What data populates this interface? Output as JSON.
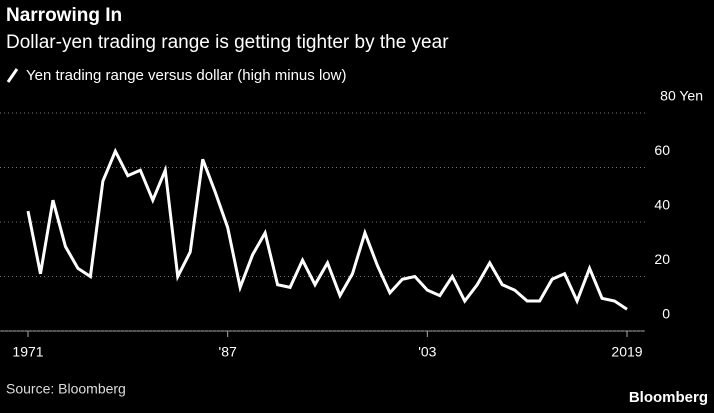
{
  "chart_data": {
    "type": "line",
    "title": "Narrowing In",
    "subtitle": "Dollar-yen trading range is getting tighter by the year",
    "source": "Source: Bloomberg",
    "brand": "Bloomberg",
    "x": [
      1971,
      1972,
      1973,
      1974,
      1975,
      1976,
      1977,
      1978,
      1979,
      1980,
      1981,
      1982,
      1983,
      1984,
      1985,
      1986,
      1987,
      1988,
      1989,
      1990,
      1991,
      1992,
      1993,
      1994,
      1995,
      1996,
      1997,
      1998,
      1999,
      2000,
      2001,
      2002,
      2003,
      2004,
      2005,
      2006,
      2007,
      2008,
      2009,
      2010,
      2011,
      2012,
      2013,
      2014,
      2015,
      2016,
      2017,
      2018,
      2019
    ],
    "series": [
      {
        "name": "Yen trading range versus dollar (high minus low)",
        "color": "#ffffff",
        "values": [
          44,
          21,
          48,
          31,
          23,
          20,
          55,
          66,
          57,
          59,
          48,
          59,
          20,
          29,
          63,
          51,
          38,
          16,
          28,
          36,
          17,
          16,
          26,
          17,
          25,
          13,
          21,
          36,
          24,
          14,
          19,
          20,
          15,
          13,
          20,
          11,
          17,
          25,
          17,
          15,
          11,
          11,
          19,
          21,
          11,
          23,
          12,
          11,
          8
        ]
      }
    ],
    "xlim": [
      1971,
      2019
    ],
    "xticks": [
      1971,
      {
        "value": 1987,
        "label": "'87"
      },
      {
        "value": 2003,
        "label": "'03"
      },
      2019
    ],
    "ylim": [
      0,
      80
    ],
    "yticks": [
      0,
      20,
      40,
      60,
      {
        "value": 80,
        "label": "80 Yen"
      }
    ],
    "grid": true
  }
}
